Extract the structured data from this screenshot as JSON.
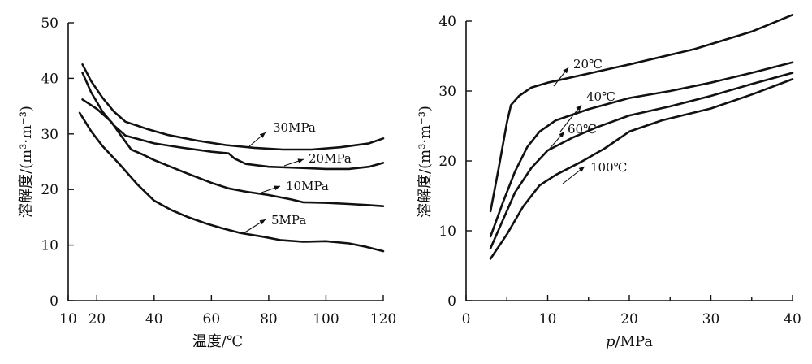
{
  "chart_data": [
    {
      "type": "line",
      "xlabel": "温度/℃",
      "ylabel": "溶解度/(m³·m⁻³)",
      "xlim": [
        10,
        120
      ],
      "ylim": [
        0,
        50
      ],
      "x_ticks": [
        10,
        20,
        40,
        60,
        80,
        100,
        120
      ],
      "y_ticks": [
        0,
        10,
        20,
        30,
        40,
        50
      ],
      "series": [
        {
          "name": "30MPa",
          "points": [
            [
              15,
              42.5
            ],
            [
              18,
              39.5
            ],
            [
              22,
              36.5
            ],
            [
              26,
              34
            ],
            [
              30,
              32.2
            ],
            [
              34,
              31.5
            ],
            [
              38,
              30.8
            ],
            [
              45,
              29.8
            ],
            [
              55,
              28.8
            ],
            [
              65,
              28
            ],
            [
              75,
              27.5
            ],
            [
              85,
              27.2
            ],
            [
              95,
              27.2
            ],
            [
              105,
              27.6
            ],
            [
              115,
              28.3
            ],
            [
              120,
              29.2
            ]
          ]
        },
        {
          "name": "20MPa",
          "points": [
            [
              15,
              41
            ],
            [
              18,
              37.5
            ],
            [
              22,
              34
            ],
            [
              26,
              31.5
            ],
            [
              30,
              29.7
            ],
            [
              35,
              29
            ],
            [
              40,
              28.3
            ],
            [
              50,
              27.5
            ],
            [
              60,
              26.8
            ],
            [
              66,
              26.5
            ],
            [
              68,
              25.6
            ],
            [
              72,
              24.6
            ],
            [
              80,
              24.1
            ],
            [
              90,
              23.9
            ],
            [
              100,
              23.7
            ],
            [
              108,
              23.7
            ],
            [
              115,
              24.1
            ],
            [
              120,
              24.8
            ]
          ]
        },
        {
          "name": "10MPa",
          "points": [
            [
              15,
              36.2
            ],
            [
              20,
              34.5
            ],
            [
              25,
              32.2
            ],
            [
              28,
              30
            ],
            [
              32,
              27.2
            ],
            [
              36,
              26.3
            ],
            [
              40,
              25.3
            ],
            [
              50,
              23.2
            ],
            [
              60,
              21.2
            ],
            [
              66,
              20.2
            ],
            [
              72,
              19.6
            ],
            [
              80,
              19
            ],
            [
              88,
              18.2
            ],
            [
              92,
              17.7
            ],
            [
              100,
              17.6
            ],
            [
              108,
              17.4
            ],
            [
              115,
              17.2
            ],
            [
              120,
              17
            ]
          ]
        },
        {
          "name": "5MPa",
          "points": [
            [
              14,
              33.8
            ],
            [
              18,
              30.5
            ],
            [
              22,
              27.8
            ],
            [
              28,
              24.5
            ],
            [
              34,
              21
            ],
            [
              40,
              18
            ],
            [
              46,
              16.3
            ],
            [
              52,
              15
            ],
            [
              58,
              13.9
            ],
            [
              64,
              13
            ],
            [
              70,
              12.2
            ],
            [
              78,
              11.5
            ],
            [
              84,
              10.9
            ],
            [
              92,
              10.6
            ],
            [
              100,
              10.7
            ],
            [
              108,
              10.3
            ],
            [
              114,
              9.7
            ],
            [
              120,
              8.9
            ]
          ]
        }
      ],
      "annotations": [
        {
          "text": "30MPa",
          "series": "30MPa"
        },
        {
          "text": "20MPa",
          "series": "20MPa"
        },
        {
          "text": "10MPa",
          "series": "10MPa"
        },
        {
          "text": "5MPa",
          "series": "5MPa"
        }
      ]
    },
    {
      "type": "line",
      "xlabel": "p/MPa",
      "ylabel": "溶解度/(m³·m⁻³)",
      "xlim": [
        0,
        40
      ],
      "ylim": [
        0,
        40
      ],
      "x_ticks": [
        0,
        10,
        20,
        30,
        40
      ],
      "y_ticks": [
        0,
        10,
        20,
        30,
        40
      ],
      "series": [
        {
          "name": "20℃",
          "points": [
            [
              3,
              12.8
            ],
            [
              4,
              19
            ],
            [
              5,
              25.5
            ],
            [
              5.5,
              28
            ],
            [
              6.5,
              29.3
            ],
            [
              8,
              30.5
            ],
            [
              10,
              31.2
            ],
            [
              15,
              32.5
            ],
            [
              20,
              33.8
            ],
            [
              28,
              36
            ],
            [
              35,
              38.5
            ],
            [
              40,
              40.9
            ]
          ]
        },
        {
          "name": "40℃",
          "points": [
            [
              3,
              9.2
            ],
            [
              4.5,
              14
            ],
            [
              6,
              18.5
            ],
            [
              7.5,
              22
            ],
            [
              9,
              24.2
            ],
            [
              11,
              25.8
            ],
            [
              15,
              27.4
            ],
            [
              20,
              29
            ],
            [
              25,
              30
            ],
            [
              30,
              31.2
            ],
            [
              35,
              32.6
            ],
            [
              40,
              34.1
            ]
          ]
        },
        {
          "name": "60℃",
          "points": [
            [
              3,
              7.5
            ],
            [
              4.5,
              11.5
            ],
            [
              6,
              15.5
            ],
            [
              8,
              19
            ],
            [
              10,
              21.5
            ],
            [
              13,
              23.3
            ],
            [
              16,
              24.8
            ],
            [
              20,
              26.5
            ],
            [
              25,
              27.8
            ],
            [
              30,
              29.3
            ],
            [
              35,
              31
            ],
            [
              40,
              32.6
            ]
          ]
        },
        {
          "name": "100℃",
          "points": [
            [
              3,
              6
            ],
            [
              5,
              9.5
            ],
            [
              7,
              13.5
            ],
            [
              9,
              16.5
            ],
            [
              11,
              18
            ],
            [
              14,
              19.8
            ],
            [
              17,
              21.8
            ],
            [
              20,
              24.2
            ],
            [
              24,
              25.8
            ],
            [
              30,
              27.5
            ],
            [
              35,
              29.5
            ],
            [
              40,
              31.7
            ]
          ]
        }
      ],
      "annotations": [
        {
          "text": "20℃",
          "series": "20℃"
        },
        {
          "text": "40℃",
          "series": "40℃"
        },
        {
          "text": "60℃",
          "series": "60℃"
        },
        {
          "text": "100℃",
          "series": "100℃"
        }
      ]
    }
  ]
}
